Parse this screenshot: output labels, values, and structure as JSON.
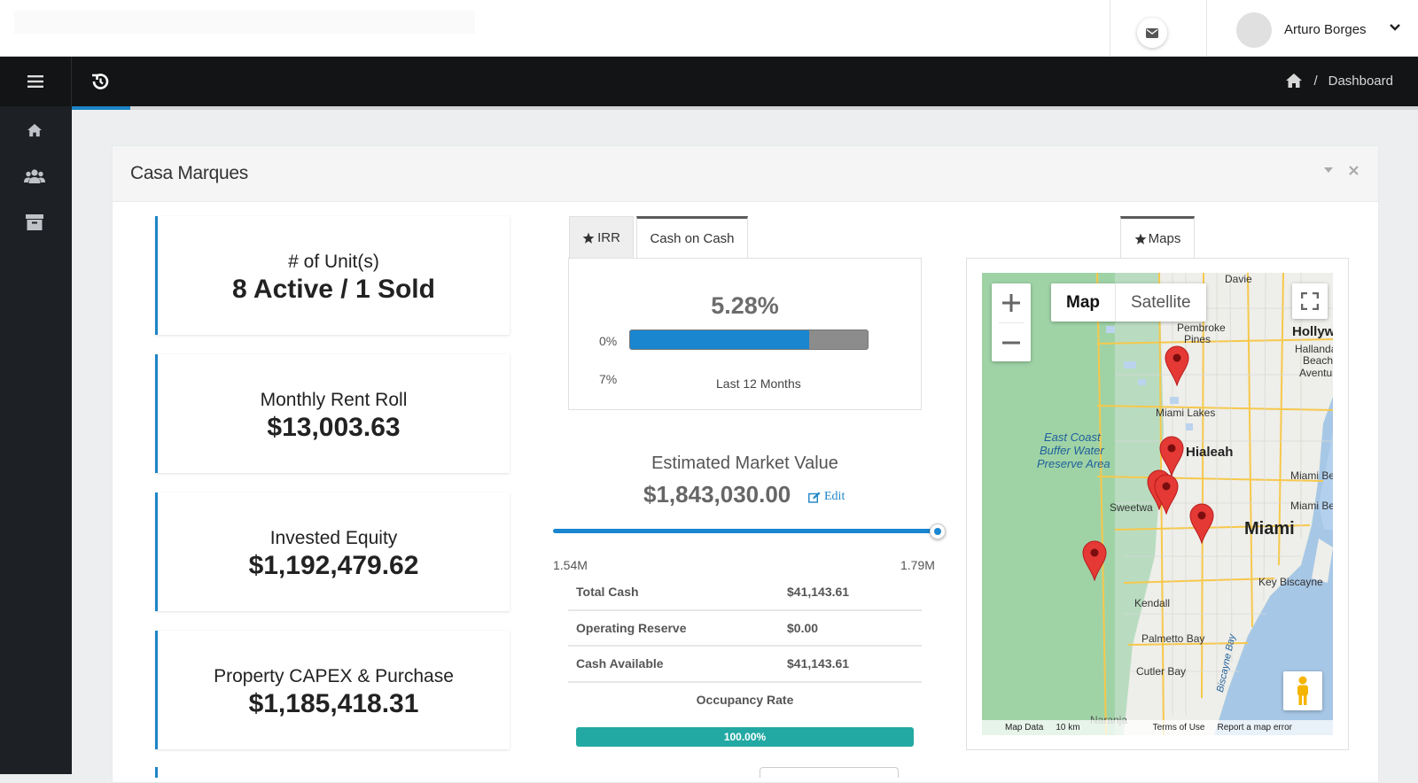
{
  "header": {
    "user_name": "Arturo Borges",
    "icons": [
      "mail-icon",
      "chevron-down-icon"
    ]
  },
  "navbar": {
    "breadcrumb_current": "Dashboard",
    "accent_color": "#1c84c6"
  },
  "sidebar": {
    "items": [
      {
        "icon": "home-icon"
      },
      {
        "icon": "users-icon"
      },
      {
        "icon": "archive-icon"
      }
    ]
  },
  "panel": {
    "title": "Casa Marques"
  },
  "stats": [
    {
      "label": "# of Unit(s)",
      "value": "8 Active / 1 Sold"
    },
    {
      "label": "Monthly Rent Roll",
      "value": "$13,003.63"
    },
    {
      "label": "Invested Equity",
      "value": "$1,192,479.62"
    },
    {
      "label": "Property CAPEX & Purchase",
      "value": "$1,185,418.31"
    }
  ],
  "tabs": {
    "irr": "IRR",
    "cash_on_cash": "Cash on Cash",
    "active": "Cash on Cash"
  },
  "cash_on_cash": {
    "percent_text": "5.28%",
    "min_label": "0%",
    "max_label": "7%",
    "progress": 0.754,
    "period": "Last 12 Months"
  },
  "market_value": {
    "label": "Estimated Market Value",
    "value": "$1,843,030.00",
    "edit_label": "Edit",
    "slider_min_label": "1.54M",
    "slider_max_label": "1.79M",
    "slider_position": 1.0
  },
  "financials": [
    {
      "label": "Total Cash",
      "value": "$41,143.61"
    },
    {
      "label": "Operating Reserve",
      "value": "$0.00"
    },
    {
      "label": "Cash Available",
      "value": "$41,143.61"
    }
  ],
  "occupancy": {
    "label": "Occupancy Rate",
    "value_text": "100.00%",
    "fraction": 1.0,
    "color": "#23a9a3"
  },
  "map": {
    "tab_label": "Maps",
    "type_map": "Map",
    "type_satellite": "Satellite",
    "labels": {
      "davie": "Davie",
      "pembroke": "Pembroke",
      "pines": "Pines",
      "hollywood": "Hollywood",
      "hallandale": "Hallandale",
      "beach": "Beach",
      "aventura": "Aventura",
      "miami_lakes": "Miami Lakes",
      "hialeah": "Hialeah",
      "east_coast": "East Coast",
      "buffer_water": "Buffer Water",
      "preserve_area": "Preserve Area",
      "miami_be1": "Miami Be",
      "miami_be2": "Miami Be",
      "sweetwater": "Sweetwa",
      "miami": "Miami",
      "key_biscayne": "Key Biscayne",
      "kendall": "Kendall",
      "palmetto_bay": "Palmetto Bay",
      "cutler_bay": "Cutler Bay",
      "biscayne_bay": "Biscayne Bay",
      "naranja": "Naranja"
    },
    "footer": {
      "map_data": "Map Data",
      "scale": "10 km",
      "terms": "Terms of Use",
      "report": "Report a map error"
    }
  }
}
